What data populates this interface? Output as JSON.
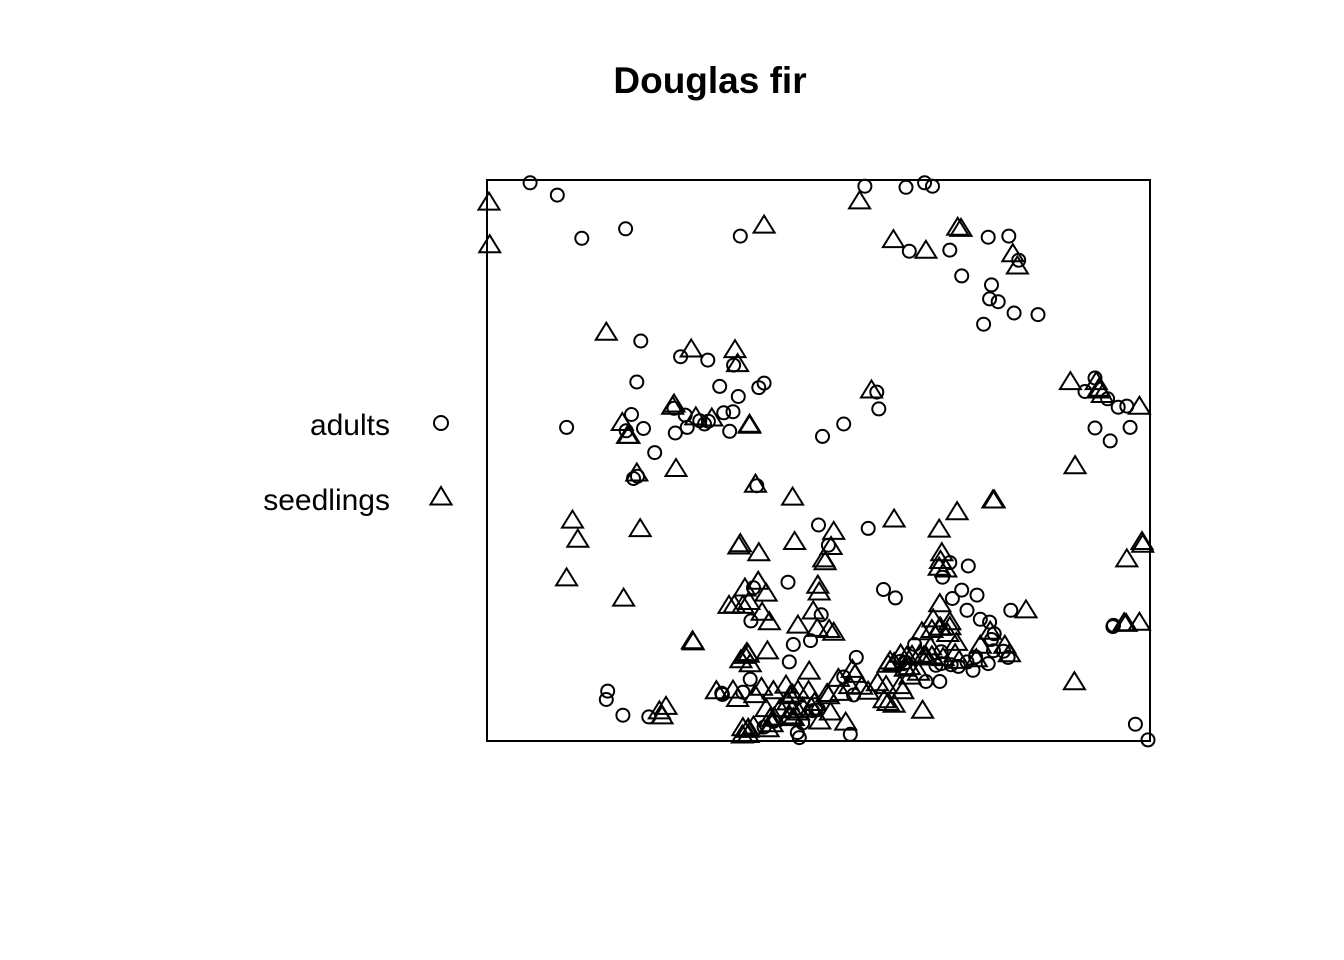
{
  "chart_data": {
    "type": "scatter",
    "title": "Douglas fir",
    "xlabel": "",
    "ylabel": "",
    "xlim": [
      0,
      100
    ],
    "ylim": [
      0,
      100
    ],
    "grid": false,
    "axes_shown": false,
    "frame": true,
    "legend": {
      "placement": "left",
      "entries": [
        {
          "label": "adults",
          "symbol": "circle"
        },
        {
          "label": "seedlings",
          "symbol": "triangle"
        }
      ]
    },
    "series": [
      {
        "name": "adults",
        "symbol": "circle",
        "points": [
          [
            6.5,
            99.5
          ],
          [
            10.6,
            97.3
          ],
          [
            14.3,
            89.6
          ],
          [
            20.9,
            91.3
          ],
          [
            38.2,
            90.0
          ],
          [
            57.0,
            98.9
          ],
          [
            63.2,
            98.7
          ],
          [
            66.0,
            99.5
          ],
          [
            67.2,
            98.9
          ],
          [
            63.7,
            87.3
          ],
          [
            69.8,
            87.5
          ],
          [
            75.6,
            89.8
          ],
          [
            78.7,
            90.0
          ],
          [
            71.6,
            82.9
          ],
          [
            76.1,
            81.3
          ],
          [
            75.8,
            78.8
          ],
          [
            77.1,
            78.3
          ],
          [
            80.2,
            85.7
          ],
          [
            79.5,
            76.3
          ],
          [
            74.9,
            74.3
          ],
          [
            83.1,
            76.0
          ],
          [
            23.2,
            71.3
          ],
          [
            22.6,
            64.0
          ],
          [
            29.2,
            68.5
          ],
          [
            33.3,
            67.9
          ],
          [
            35.1,
            63.2
          ],
          [
            37.2,
            67.0
          ],
          [
            41.8,
            63.8
          ],
          [
            41.0,
            63.0
          ],
          [
            37.9,
            61.4
          ],
          [
            37.1,
            58.7
          ],
          [
            32.8,
            56.5
          ],
          [
            25.3,
            51.4
          ],
          [
            21.8,
            58.2
          ],
          [
            21.0,
            55.3
          ],
          [
            23.6,
            55.7
          ],
          [
            28.2,
            59.3
          ],
          [
            29.9,
            58.1
          ],
          [
            30.2,
            55.9
          ],
          [
            28.4,
            54.9
          ],
          [
            32.1,
            57.1
          ],
          [
            33.4,
            57.0
          ],
          [
            35.7,
            58.5
          ],
          [
            36.6,
            55.2
          ],
          [
            22.7,
            47.2
          ],
          [
            22.1,
            46.8
          ],
          [
            40.7,
            45.5
          ],
          [
            12.0,
            55.9
          ],
          [
            58.8,
            62.2
          ],
          [
            59.1,
            59.2
          ],
          [
            53.8,
            56.5
          ],
          [
            50.6,
            54.3
          ],
          [
            91.7,
            64.7
          ],
          [
            90.2,
            62.3
          ],
          [
            93.6,
            61.0
          ],
          [
            95.2,
            59.5
          ],
          [
            96.5,
            59.7
          ],
          [
            91.7,
            55.8
          ],
          [
            94.0,
            53.5
          ],
          [
            97.0,
            55.9
          ],
          [
            57.5,
            37.9
          ],
          [
            50.0,
            38.5
          ],
          [
            51.5,
            34.9
          ],
          [
            45.4,
            28.3
          ],
          [
            40.2,
            27.3
          ],
          [
            59.8,
            27.0
          ],
          [
            61.6,
            25.5
          ],
          [
            72.6,
            31.2
          ],
          [
            69.8,
            31.8
          ],
          [
            68.7,
            29.2
          ],
          [
            71.6,
            26.9
          ],
          [
            73.9,
            26.0
          ],
          [
            70.2,
            25.4
          ],
          [
            72.4,
            23.3
          ],
          [
            74.4,
            21.7
          ],
          [
            75.8,
            21.2
          ],
          [
            76.5,
            19.1
          ],
          [
            79.0,
            23.3
          ],
          [
            76.1,
            18.1
          ],
          [
            77.9,
            16.0
          ],
          [
            76.4,
            16.1
          ],
          [
            78.6,
            14.9
          ],
          [
            75.6,
            13.8
          ],
          [
            72.4,
            14.1
          ],
          [
            68.5,
            15.9
          ],
          [
            70.0,
            13.6
          ],
          [
            73.3,
            12.6
          ],
          [
            64.5,
            17.2
          ],
          [
            67.7,
            13.5
          ],
          [
            68.3,
            10.6
          ],
          [
            68.5,
            13.8
          ],
          [
            66.2,
            10.6
          ],
          [
            73.7,
            15.0
          ],
          [
            71.1,
            13.3
          ],
          [
            63.2,
            14.0
          ],
          [
            62.4,
            14.2
          ],
          [
            39.8,
            21.4
          ],
          [
            50.4,
            22.5
          ],
          [
            48.8,
            17.9
          ],
          [
            55.7,
            14.9
          ],
          [
            53.8,
            11.4
          ],
          [
            55.3,
            8.2
          ],
          [
            46.2,
            17.2
          ],
          [
            45.6,
            14.1
          ],
          [
            39.7,
            11.0
          ],
          [
            38.6,
            8.7
          ],
          [
            35.4,
            8.5
          ],
          [
            49.6,
            5.5
          ],
          [
            49.1,
            5.4
          ],
          [
            43.2,
            3.5
          ],
          [
            46.8,
            1.5
          ],
          [
            47.6,
            3.2
          ],
          [
            50.0,
            5.6
          ],
          [
            41.8,
            2.5
          ],
          [
            54.8,
            1.2
          ],
          [
            47.1,
            0.6
          ],
          [
            18.2,
            8.9
          ],
          [
            18.0,
            7.4
          ],
          [
            20.5,
            4.6
          ],
          [
            24.4,
            4.3
          ],
          [
            35.5,
            8.3
          ],
          [
            97.8,
            3.0
          ],
          [
            99.7,
            0.2
          ],
          [
            94.4,
            20.4
          ],
          [
            94.5,
            20.6
          ]
        ]
      },
      {
        "name": "seedlings",
        "symbol": "triangle",
        "points": [
          [
            0.3,
            95.8
          ],
          [
            0.4,
            88.2
          ],
          [
            56.2,
            96.0
          ],
          [
            41.8,
            91.7
          ],
          [
            61.3,
            89.1
          ],
          [
            66.2,
            87.2
          ],
          [
            71.0,
            91.3
          ],
          [
            71.5,
            91.1
          ],
          [
            79.3,
            86.6
          ],
          [
            80.0,
            84.4
          ],
          [
            18.0,
            72.6
          ],
          [
            30.8,
            69.6
          ],
          [
            37.4,
            69.5
          ],
          [
            37.8,
            67.0
          ],
          [
            28.2,
            59.8
          ],
          [
            28.0,
            59.4
          ],
          [
            31.5,
            57.5
          ],
          [
            33.9,
            57.3
          ],
          [
            20.4,
            56.5
          ],
          [
            21.2,
            54.2
          ],
          [
            21.4,
            54.2
          ],
          [
            39.6,
            56.2
          ],
          [
            39.6,
            56.0
          ],
          [
            22.6,
            47.5
          ],
          [
            28.5,
            48.3
          ],
          [
            40.5,
            45.5
          ],
          [
            58.0,
            62.3
          ],
          [
            88.0,
            63.8
          ],
          [
            92.4,
            62.3
          ],
          [
            91.9,
            63.8
          ],
          [
            92.3,
            62.6
          ],
          [
            92.8,
            61.5
          ],
          [
            98.4,
            59.4
          ],
          [
            88.7,
            48.8
          ],
          [
            76.5,
            42.7
          ],
          [
            76.3,
            42.7
          ],
          [
            46.1,
            43.2
          ],
          [
            70.9,
            40.6
          ],
          [
            61.4,
            39.3
          ],
          [
            68.2,
            37.5
          ],
          [
            12.9,
            39.1
          ],
          [
            13.7,
            35.7
          ],
          [
            23.1,
            37.6
          ],
          [
            12.0,
            28.8
          ],
          [
            20.6,
            25.2
          ],
          [
            46.4,
            35.3
          ],
          [
            52.3,
            37.1
          ],
          [
            51.9,
            34.4
          ],
          [
            38.2,
            34.9
          ],
          [
            38.0,
            34.5
          ],
          [
            41.0,
            33.3
          ],
          [
            50.8,
            32.2
          ],
          [
            51.0,
            31.7
          ],
          [
            68.2,
            30.7
          ],
          [
            68.4,
            31.9
          ],
          [
            40.9,
            28.2
          ],
          [
            49.9,
            27.5
          ],
          [
            50.1,
            26.3
          ],
          [
            38.9,
            27.0
          ],
          [
            42.1,
            26.1
          ],
          [
            39.5,
            24.6
          ],
          [
            37.3,
            24.0
          ],
          [
            36.5,
            23.9
          ],
          [
            38.6,
            23.9
          ],
          [
            49.2,
            22.9
          ],
          [
            41.5,
            22.7
          ],
          [
            42.6,
            21.0
          ],
          [
            46.9,
            20.4
          ],
          [
            51.6,
            19.6
          ],
          [
            52.3,
            19.1
          ],
          [
            49.8,
            19.8
          ],
          [
            31.0,
            17.6
          ],
          [
            38.9,
            15.0
          ],
          [
            39.2,
            15.5
          ],
          [
            38.3,
            14.2
          ],
          [
            39.7,
            13.5
          ],
          [
            42.3,
            15.8
          ],
          [
            39.4,
            15.2
          ],
          [
            48.6,
            12.2
          ],
          [
            55.1,
            12.5
          ],
          [
            60.5,
            13.4
          ],
          [
            61.4,
            13.7
          ],
          [
            63.1,
            12.7
          ],
          [
            63.7,
            13.0
          ],
          [
            63.8,
            11.3
          ],
          [
            65.1,
            12.0
          ],
          [
            68.8,
            14.6
          ],
          [
            69.5,
            18.9
          ],
          [
            68.4,
            20.0
          ],
          [
            68.3,
            24.2
          ],
          [
            67.3,
            21.5
          ],
          [
            69.8,
            20.1
          ],
          [
            70.6,
            15.3
          ],
          [
            71.2,
            14.1
          ],
          [
            73.8,
            14.4
          ],
          [
            74.4,
            16.8
          ],
          [
            75.9,
            19.3
          ],
          [
            78.1,
            16.8
          ],
          [
            78.8,
            15.3
          ],
          [
            81.3,
            23.1
          ],
          [
            69.2,
            30.4
          ],
          [
            68.6,
            33.3
          ],
          [
            88.6,
            10.3
          ],
          [
            96.1,
            20.8
          ],
          [
            96.4,
            20.7
          ],
          [
            98.4,
            20.9
          ],
          [
            96.5,
            32.2
          ],
          [
            98.8,
            35.3
          ],
          [
            98.9,
            34.8
          ],
          [
            55.5,
            11.6
          ],
          [
            53.0,
            10.9
          ],
          [
            53.4,
            8.4
          ],
          [
            48.5,
            8.7
          ],
          [
            51.3,
            8.2
          ],
          [
            51.5,
            7.8
          ],
          [
            45.1,
            9.7
          ],
          [
            43.2,
            8.7
          ],
          [
            41.4,
            9.3
          ],
          [
            37.1,
            8.8
          ],
          [
            34.6,
            8.7
          ],
          [
            45.7,
            7.8
          ],
          [
            46.9,
            8.8
          ],
          [
            46.1,
            8.1
          ],
          [
            45.4,
            6.7
          ],
          [
            44.2,
            5.5
          ],
          [
            46.0,
            5.3
          ],
          [
            47.6,
            5.8
          ],
          [
            48.9,
            5.8
          ],
          [
            49.4,
            6.6
          ],
          [
            47.0,
            4.9
          ],
          [
            45.7,
            4.2
          ],
          [
            46.2,
            3.9
          ],
          [
            42.1,
            5.5
          ],
          [
            42.7,
            3.8
          ],
          [
            43.3,
            4.0
          ],
          [
            40.2,
            2.4
          ],
          [
            42.4,
            1.9
          ],
          [
            43.0,
            2.8
          ],
          [
            50.2,
            3.3
          ],
          [
            51.8,
            4.9
          ],
          [
            54.1,
            3.1
          ],
          [
            38.6,
            2.1
          ],
          [
            39.3,
            1.8
          ],
          [
            39.4,
            2.0
          ],
          [
            38.5,
            0.8
          ],
          [
            39.4,
            0.9
          ],
          [
            26.4,
            4.2
          ],
          [
            26.0,
            5.1
          ],
          [
            31.1,
            17.4
          ],
          [
            27.0,
            5.9
          ],
          [
            37.8,
            7.3
          ],
          [
            40.4,
            8.0
          ],
          [
            56.5,
            9.5
          ],
          [
            57.5,
            8.6
          ],
          [
            62.3,
            9.6
          ],
          [
            59.9,
            7.1
          ],
          [
            60.5,
            6.6
          ],
          [
            61.4,
            6.3
          ],
          [
            65.7,
            5.2
          ],
          [
            60.2,
            9.6
          ],
          [
            62.7,
            8.7
          ],
          [
            54.7,
            9.6
          ],
          [
            58.9,
            10.1
          ],
          [
            60.8,
            14.0
          ],
          [
            62.4,
            15.2
          ],
          [
            63.3,
            14.8
          ],
          [
            64.1,
            15.0
          ],
          [
            65.3,
            15.2
          ],
          [
            65.9,
            14.9
          ],
          [
            66.3,
            14.7
          ],
          [
            67.1,
            14.9
          ],
          [
            70.8,
            17.3
          ],
          [
            66.9,
            16.5
          ],
          [
            65.6,
            19.2
          ],
          [
            67.1,
            19.6
          ],
          [
            68.3,
            20.0
          ],
          [
            69.8,
            21.0
          ]
        ]
      }
    ]
  }
}
